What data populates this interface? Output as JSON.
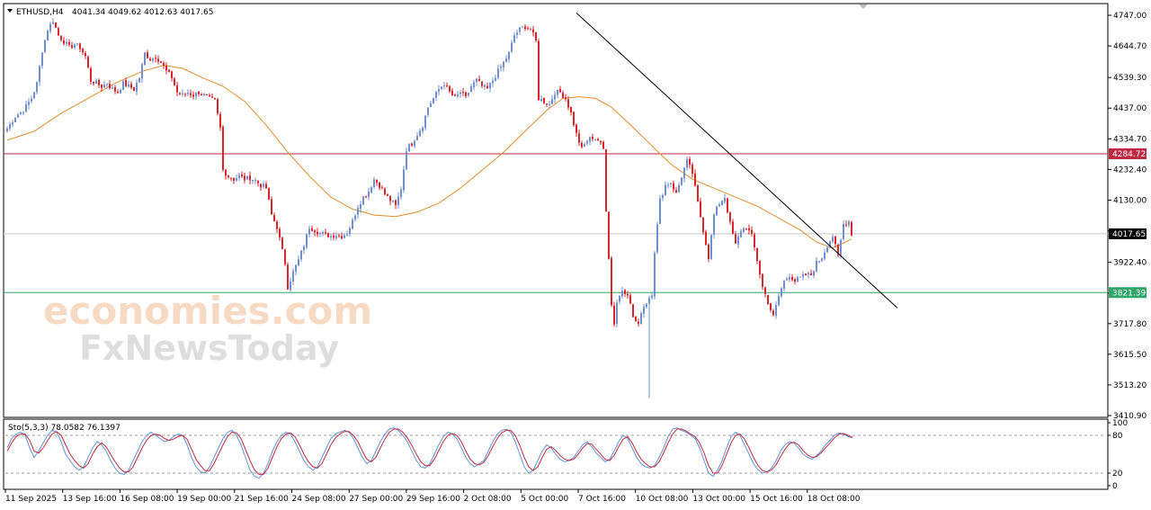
{
  "header": {
    "symbol": "ETHUSD,H4",
    "ohlc": "4041.34 4049.62 4012.63 4017.65"
  },
  "watermark": {
    "line1": "economies.com",
    "line2": "FxNewsToday"
  },
  "colors": {
    "bull": "#6f8fcf",
    "bear": "#d8262b",
    "ma": "#e08c2a",
    "resistance": "#c0283f",
    "support": "#2fa56a",
    "trendline": "#000000",
    "stoch_main": "#5f93d6",
    "stoch_signal": "#c0283f"
  },
  "chart_data": [
    {
      "type": "candlestick",
      "symbol": "ETHUSD",
      "timeframe": "H4",
      "ylim": [
        3410.9,
        4780
      ],
      "y_ticks": [
        4747.0,
        4644.7,
        4539.3,
        4437.0,
        4334.7,
        4232.4,
        4130.0,
        4027.7,
        3922.4,
        3820.1,
        3717.8,
        3615.5,
        3513.2,
        3410.9
      ],
      "y_tick_labels": [
        "4747.00",
        "4644.70",
        "4539.30",
        "4437.00",
        "4334.70",
        "4232.40",
        "4130.00",
        "",
        "3922.40",
        "",
        "3717.80",
        "3615.50",
        "3513.20",
        "3410.90"
      ],
      "x_tick_labels": [
        "11 Sep 2025",
        "13 Sep 16:00",
        "16 Sep 08:00",
        "19 Sep 00:00",
        "21 Sep 16:00",
        "24 Sep 08:00",
        "27 Sep 00:00",
        "29 Sep 16:00",
        "2 Oct 08:00",
        "5 Oct 00:00",
        "7 Oct 16:00",
        "10 Oct 08:00",
        "13 Oct 00:00",
        "15 Oct 16:00",
        "18 Oct 08:00"
      ],
      "close_path": [
        [
          0,
          4370
        ],
        [
          3,
          4410
        ],
        [
          6,
          4430
        ],
        [
          9,
          4470
        ],
        [
          11,
          4520
        ],
        [
          13,
          4630
        ],
        [
          15,
          4700
        ],
        [
          17,
          4730
        ],
        [
          19,
          4680
        ],
        [
          21,
          4660
        ],
        [
          23,
          4640
        ],
        [
          25,
          4650
        ],
        [
          27,
          4640
        ],
        [
          29,
          4610
        ],
        [
          31,
          4530
        ],
        [
          33,
          4520
        ],
        [
          35,
          4510
        ],
        [
          37,
          4520
        ],
        [
          39,
          4500
        ],
        [
          41,
          4490
        ],
        [
          43,
          4520
        ],
        [
          45,
          4510
        ],
        [
          47,
          4500
        ],
        [
          49,
          4540
        ],
        [
          51,
          4620
        ],
        [
          53,
          4600
        ],
        [
          55,
          4610
        ],
        [
          57,
          4590
        ],
        [
          59,
          4560
        ],
        [
          61,
          4540
        ],
        [
          63,
          4490
        ],
        [
          65,
          4480
        ],
        [
          67,
          4490
        ],
        [
          69,
          4480
        ],
        [
          71,
          4490
        ],
        [
          73,
          4480
        ],
        [
          75,
          4470
        ],
        [
          77,
          4460
        ],
        [
          79,
          4370
        ],
        [
          80,
          4230
        ],
        [
          82,
          4210
        ],
        [
          84,
          4200
        ],
        [
          86,
          4210
        ],
        [
          88,
          4200
        ],
        [
          90,
          4205
        ],
        [
          92,
          4195
        ],
        [
          94,
          4180
        ],
        [
          96,
          4170
        ],
        [
          98,
          4080
        ],
        [
          100,
          4040
        ],
        [
          101,
          4000
        ],
        [
          103,
          3920
        ],
        [
          104,
          3840
        ],
        [
          106,
          3890
        ],
        [
          108,
          3930
        ],
        [
          110,
          3980
        ],
        [
          112,
          4040
        ],
        [
          114,
          4030
        ],
        [
          116,
          4020
        ],
        [
          118,
          4015
        ],
        [
          120,
          4010
        ],
        [
          122,
          4015
        ],
        [
          124,
          4010
        ],
        [
          126,
          4020
        ],
        [
          128,
          4060
        ],
        [
          130,
          4110
        ],
        [
          132,
          4140
        ],
        [
          134,
          4160
        ],
        [
          136,
          4200
        ],
        [
          138,
          4180
        ],
        [
          140,
          4150
        ],
        [
          142,
          4130
        ],
        [
          144,
          4110
        ],
        [
          146,
          4170
        ],
        [
          148,
          4300
        ],
        [
          150,
          4320
        ],
        [
          152,
          4350
        ],
        [
          154,
          4380
        ],
        [
          156,
          4440
        ],
        [
          158,
          4470
        ],
        [
          160,
          4500
        ],
        [
          162,
          4520
        ],
        [
          164,
          4490
        ],
        [
          166,
          4470
        ],
        [
          168,
          4490
        ],
        [
          170,
          4470
        ],
        [
          172,
          4510
        ],
        [
          174,
          4530
        ],
        [
          176,
          4510
        ],
        [
          178,
          4500
        ],
        [
          180,
          4530
        ],
        [
          182,
          4560
        ],
        [
          184,
          4590
        ],
        [
          186,
          4620
        ],
        [
          188,
          4680
        ],
        [
          190,
          4700
        ],
        [
          192,
          4710
        ],
        [
          194,
          4700
        ],
        [
          196,
          4660
        ],
        [
          197,
          4470
        ],
        [
          199,
          4460
        ],
        [
          201,
          4450
        ],
        [
          203,
          4490
        ],
        [
          205,
          4490
        ],
        [
          207,
          4470
        ],
        [
          209,
          4420
        ],
        [
          211,
          4350
        ],
        [
          213,
          4300
        ],
        [
          215,
          4330
        ],
        [
          217,
          4340
        ],
        [
          219,
          4330
        ],
        [
          221,
          4300
        ],
        [
          222,
          4100
        ],
        [
          223,
          3940
        ],
        [
          224,
          3780
        ],
        [
          225,
          3720
        ],
        [
          226,
          3790
        ],
        [
          228,
          3830
        ],
        [
          230,
          3820
        ],
        [
          232,
          3740
        ],
        [
          234,
          3710
        ],
        [
          235,
          3760
        ],
        [
          237,
          3790
        ],
        [
          239,
          3820
        ],
        [
          240,
          3960
        ],
        [
          242,
          4130
        ],
        [
          244,
          4180
        ],
        [
          246,
          4190
        ],
        [
          248,
          4150
        ],
        [
          250,
          4210
        ],
        [
          252,
          4260
        ],
        [
          254,
          4220
        ],
        [
          256,
          4120
        ],
        [
          258,
          4030
        ],
        [
          260,
          3940
        ],
        [
          262,
          4080
        ],
        [
          264,
          4120
        ],
        [
          266,
          4140
        ],
        [
          268,
          4050
        ],
        [
          270,
          3980
        ],
        [
          272,
          4030
        ],
        [
          274,
          4040
        ],
        [
          276,
          4010
        ],
        [
          278,
          3930
        ],
        [
          280,
          3840
        ],
        [
          282,
          3790
        ],
        [
          284,
          3740
        ],
        [
          286,
          3810
        ],
        [
          288,
          3860
        ],
        [
          290,
          3880
        ],
        [
          292,
          3860
        ],
        [
          294,
          3870
        ],
        [
          296,
          3880
        ],
        [
          298,
          3880
        ],
        [
          300,
          3920
        ],
        [
          302,
          3940
        ],
        [
          304,
          3980
        ],
        [
          306,
          4010
        ],
        [
          308,
          3940
        ],
        [
          310,
          4050
        ],
        [
          312,
          4060
        ],
        [
          313,
          4018
        ]
      ],
      "moving_average_path": [
        [
          0,
          4330
        ],
        [
          10,
          4360
        ],
        [
          20,
          4420
        ],
        [
          30,
          4470
        ],
        [
          40,
          4520
        ],
        [
          50,
          4560
        ],
        [
          58,
          4580
        ],
        [
          65,
          4570
        ],
        [
          72,
          4540
        ],
        [
          80,
          4510
        ],
        [
          88,
          4460
        ],
        [
          96,
          4380
        ],
        [
          104,
          4290
        ],
        [
          112,
          4210
        ],
        [
          120,
          4140
        ],
        [
          128,
          4100
        ],
        [
          136,
          4080
        ],
        [
          144,
          4075
        ],
        [
          152,
          4090
        ],
        [
          160,
          4120
        ],
        [
          168,
          4170
        ],
        [
          176,
          4230
        ],
        [
          184,
          4290
        ],
        [
          192,
          4360
        ],
        [
          200,
          4430
        ],
        [
          206,
          4470
        ],
        [
          212,
          4475
        ],
        [
          218,
          4470
        ],
        [
          224,
          4440
        ],
        [
          230,
          4390
        ],
        [
          238,
          4320
        ],
        [
          246,
          4250
        ],
        [
          254,
          4200
        ],
        [
          262,
          4170
        ],
        [
          270,
          4140
        ],
        [
          278,
          4110
        ],
        [
          286,
          4070
        ],
        [
          294,
          4030
        ],
        [
          300,
          3990
        ],
        [
          306,
          3970
        ],
        [
          313,
          4000
        ]
      ],
      "horizontal_levels": [
        {
          "label": "4284.72",
          "value": 4284.72,
          "role": "resistance"
        },
        {
          "label": "4017.65",
          "value": 4017.65,
          "role": "current"
        },
        {
          "label": "3821.39",
          "value": 3821.39,
          "role": "support"
        }
      ],
      "trendline": {
        "start": [
          211,
          4755
        ],
        "end": [
          330,
          3770
        ]
      }
    },
    {
      "type": "line",
      "title": "Sto(5,3,3) 78.0582 76.1397",
      "ylim": [
        0,
        100
      ],
      "y_ticks": [
        100,
        80,
        20,
        0
      ],
      "levels": [
        80,
        20
      ],
      "series": [
        {
          "name": "main",
          "values": [
            60,
            75,
            82,
            85,
            80,
            60,
            45,
            55,
            68,
            80,
            88,
            85,
            70,
            50,
            40,
            30,
            25,
            30,
            45,
            60,
            70,
            65,
            55,
            40,
            28,
            20,
            18,
            25,
            40,
            55,
            70,
            80,
            85,
            80,
            75,
            70,
            72,
            78,
            82,
            80,
            65,
            45,
            30,
            22,
            20,
            30,
            45,
            60,
            75,
            85,
            88,
            80,
            65,
            45,
            25,
            15,
            12,
            20,
            35,
            55,
            70,
            80,
            85,
            82,
            70,
            55,
            40,
            30,
            25,
            30,
            45,
            60,
            75,
            82,
            85,
            88,
            85,
            75,
            60,
            45,
            35,
            40,
            55,
            70,
            82,
            90,
            92,
            88,
            80,
            70,
            55,
            40,
            30,
            28,
            35,
            50,
            65,
            78,
            85,
            82,
            75,
            60,
            45,
            35,
            30,
            35,
            40,
            55,
            70,
            82,
            88,
            90,
            85,
            70,
            50,
            30,
            20,
            25,
            40,
            55,
            65,
            60,
            50,
            42,
            38,
            40,
            45,
            55,
            65,
            70,
            62,
            52,
            45,
            38,
            42,
            55,
            70,
            80,
            75,
            60,
            45,
            35,
            30,
            28,
            32,
            45,
            60,
            78,
            90,
            92,
            88,
            85,
            80,
            75,
            60,
            40,
            20,
            15,
            25,
            40,
            60,
            78,
            85,
            80,
            65,
            50,
            35,
            25,
            20,
            22,
            28,
            40,
            55,
            65,
            70,
            68,
            60,
            50,
            45,
            42,
            48,
            55,
            65,
            72,
            80,
            84,
            82,
            78,
            76
          ]
        },
        {
          "name": "signal",
          "values": [
            55,
            68,
            78,
            82,
            82,
            72,
            55,
            52,
            60,
            72,
            82,
            86,
            80,
            65,
            50,
            40,
            32,
            28,
            35,
            50,
            62,
            68,
            62,
            50,
            38,
            28,
            22,
            22,
            30,
            45,
            60,
            72,
            80,
            82,
            80,
            75,
            72,
            74,
            78,
            80,
            74,
            58,
            42,
            32,
            24,
            24,
            35,
            50,
            65,
            78,
            85,
            84,
            75,
            58,
            40,
            25,
            18,
            18,
            28,
            45,
            62,
            75,
            82,
            84,
            78,
            65,
            50,
            38,
            30,
            28,
            35,
            50,
            65,
            76,
            82,
            86,
            86,
            80,
            70,
            55,
            42,
            38,
            45,
            60,
            74,
            85,
            90,
            90,
            85,
            76,
            64,
            50,
            38,
            32,
            32,
            42,
            56,
            70,
            80,
            83,
            80,
            70,
            55,
            42,
            35,
            33,
            37,
            48,
            62,
            75,
            84,
            88,
            88,
            80,
            64,
            45,
            30,
            24,
            30,
            45,
            58,
            62,
            56,
            48,
            42,
            40,
            42,
            50,
            60,
            67,
            66,
            58,
            50,
            42,
            40,
            48,
            62,
            74,
            78,
            68,
            54,
            42,
            35,
            30,
            30,
            38,
            52,
            68,
            82,
            90,
            90,
            87,
            82,
            78,
            68,
            52,
            32,
            20,
            20,
            32,
            50,
            68,
            80,
            82,
            74,
            60,
            45,
            32,
            24,
            22,
            25,
            33,
            46,
            58,
            67,
            69,
            65,
            56,
            49,
            45,
            46,
            52,
            60,
            68,
            76,
            82,
            83,
            80,
            77
          ]
        }
      ]
    }
  ]
}
